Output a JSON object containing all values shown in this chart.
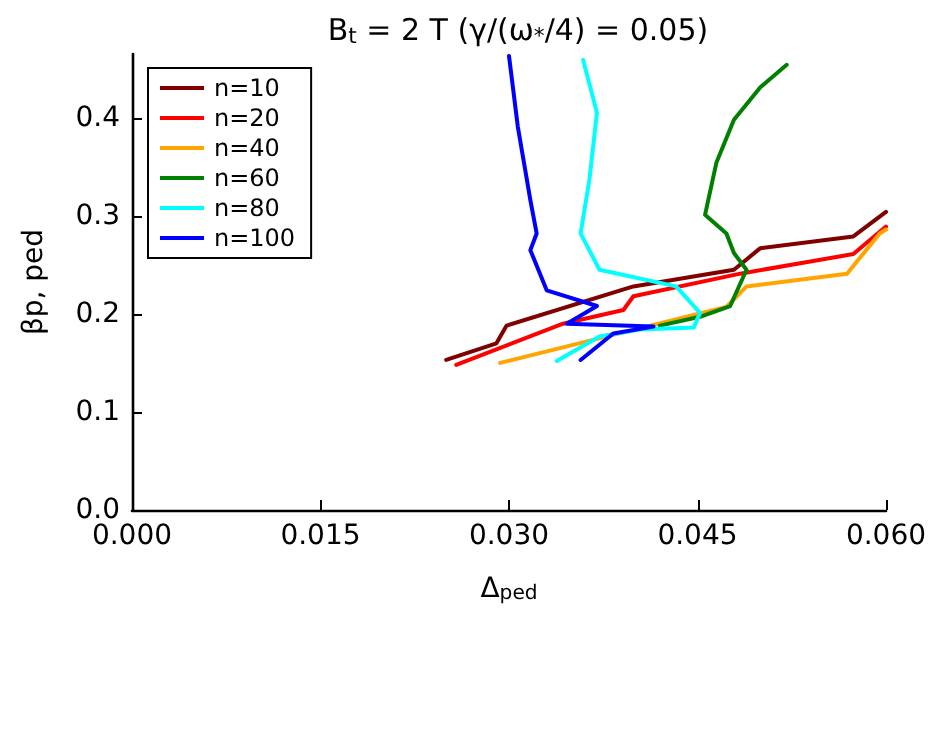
{
  "chart_data": {
    "type": "line",
    "title": "B$_{t}$ = 2 T (γ/(ω$_{*}$/4) = 0.05)",
    "xlabel": "Δ$_{ped}$",
    "ylabel": "βp, ped",
    "xlim": [
      0,
      0.06
    ],
    "xticks": [
      {
        "value": 0,
        "label": "0.000"
      },
      {
        "value": 0.015,
        "label": "0.015"
      },
      {
        "value": 0.03,
        "label": "0.030"
      },
      {
        "value": 0.045,
        "label": "0.045"
      },
      {
        "value": 0.06,
        "label": "0.060"
      }
    ],
    "ylim": [
      0,
      0.465
    ],
    "yticks": [
      {
        "value": 0,
        "label": "0.0"
      },
      {
        "value": 0.1,
        "label": "0.1"
      },
      {
        "value": 0.2,
        "label": "0.2"
      },
      {
        "value": 0.3,
        "label": "0.3"
      },
      {
        "value": 0.4,
        "label": "0.4"
      }
    ],
    "grid": false,
    "legend": "top left",
    "marker": "none",
    "line_style": "solid",
    "series": [
      {
        "name": "n=10",
        "color": "#800000",
        "x": [
          0.025,
          0.029,
          0.0298,
          0.0399,
          0.0479,
          0.05,
          0.0574,
          0.06
        ],
        "values": [
          0.153,
          0.17,
          0.188,
          0.228,
          0.245,
          0.267,
          0.279,
          0.304
        ]
      },
      {
        "name": "n=20",
        "color": "#ff0000",
        "x": [
          0.0258,
          0.0343,
          0.0391,
          0.0399,
          0.0484,
          0.0574,
          0.06
        ],
        "values": [
          0.148,
          0.19,
          0.204,
          0.218,
          0.241,
          0.261,
          0.289
        ]
      },
      {
        "name": "n=40",
        "color": "#ffa500",
        "x": [
          0.0293,
          0.0447,
          0.0473,
          0.0489,
          0.0569,
          0.0595,
          0.06
        ],
        "values": [
          0.15,
          0.199,
          0.207,
          0.228,
          0.241,
          0.282,
          0.286
        ]
      },
      {
        "name": "n=60",
        "color": "#008000",
        "x": [
          0.0521,
          0.05,
          0.0479,
          0.0465,
          0.0456,
          0.0473,
          0.0479,
          0.0489,
          0.0476,
          0.0452,
          0.042
        ],
        "values": [
          0.454,
          0.431,
          0.398,
          0.354,
          0.301,
          0.282,
          0.262,
          0.245,
          0.208,
          0.197,
          0.188
        ]
      },
      {
        "name": "n=80",
        "color": "#00ffff",
        "x": [
          0.0359,
          0.037,
          0.0364,
          0.0357,
          0.0372,
          0.0433,
          0.0452,
          0.0447,
          0.0404,
          0.0372,
          0.0338
        ],
        "values": [
          0.459,
          0.405,
          0.337,
          0.282,
          0.245,
          0.228,
          0.201,
          0.186,
          0.184,
          0.177,
          0.152
        ]
      },
      {
        "name": "n=100",
        "color": "#0000ff",
        "x": [
          0.03,
          0.0307,
          0.0317,
          0.0322,
          0.0317,
          0.033,
          0.037,
          0.0346,
          0.0415,
          0.0383,
          0.0357
        ],
        "values": [
          0.463,
          0.391,
          0.316,
          0.282,
          0.265,
          0.224,
          0.208,
          0.19,
          0.187,
          0.18,
          0.153
        ]
      }
    ]
  }
}
